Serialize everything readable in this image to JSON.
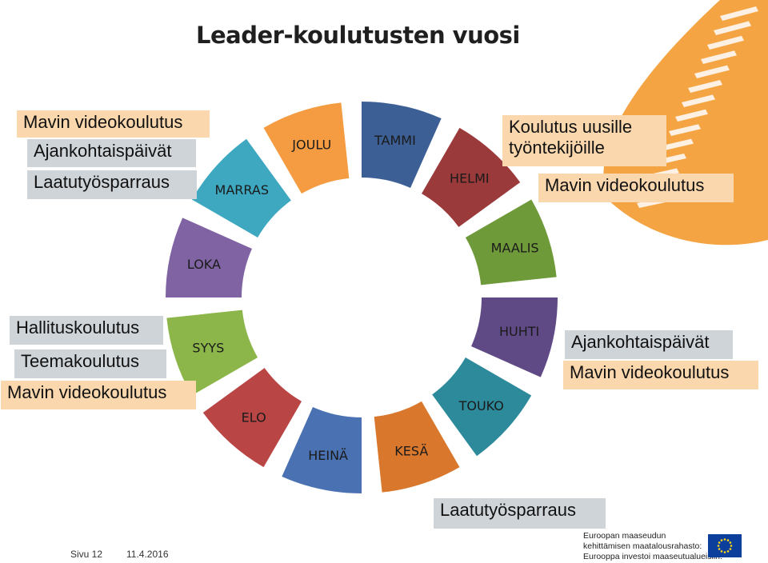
{
  "title": "Leader-koulutusten vuosi",
  "months": [
    "TAMMI",
    "HELMI",
    "MAALIS",
    "HUHTI",
    "TOUKO",
    "KESÄ",
    "HEINÄ",
    "ELO",
    "SYYS",
    "LOKA",
    "MARRAS",
    "JOULU"
  ],
  "colors": {
    "months": [
      "#3c5f95",
      "#9b3a3a",
      "#6f9a3a",
      "#5f4a86",
      "#2d8a9b",
      "#d9782d",
      "#4a72b2",
      "#b94545",
      "#8cb54a",
      "#7f63a3",
      "#3ea8c1",
      "#f59c43"
    ],
    "peach_box": "#fad7ad",
    "gray_box": "#cfd4d9",
    "logo_orange": "#f39a2e"
  },
  "boxes": {
    "top_left_1": "Mavin videokoulutus",
    "top_left_2": "Ajankohtaispäivät",
    "top_left_3": "Laatutyösparraus",
    "top_right_1": "Koulutus uusille työntekijöille",
    "top_right_2": "Mavin videokoulutus",
    "mid_left_1": "Hallituskoulutus",
    "mid_left_2": "Teemakoulutus",
    "mid_left_3": "Mavin videokoulutus",
    "mid_right_1": "Ajankohtaispäivät",
    "mid_right_2": "Mavin videokoulutus",
    "bottom": "Laatutyösparraus"
  },
  "footer": {
    "page": "Sivu 12",
    "date": "11.4.2016",
    "eu_lines": [
      "Euroopan maaseudun",
      "kehittämisen maatalousrahasto:",
      "Eurooppa investoi maaseutualueisiin."
    ]
  }
}
